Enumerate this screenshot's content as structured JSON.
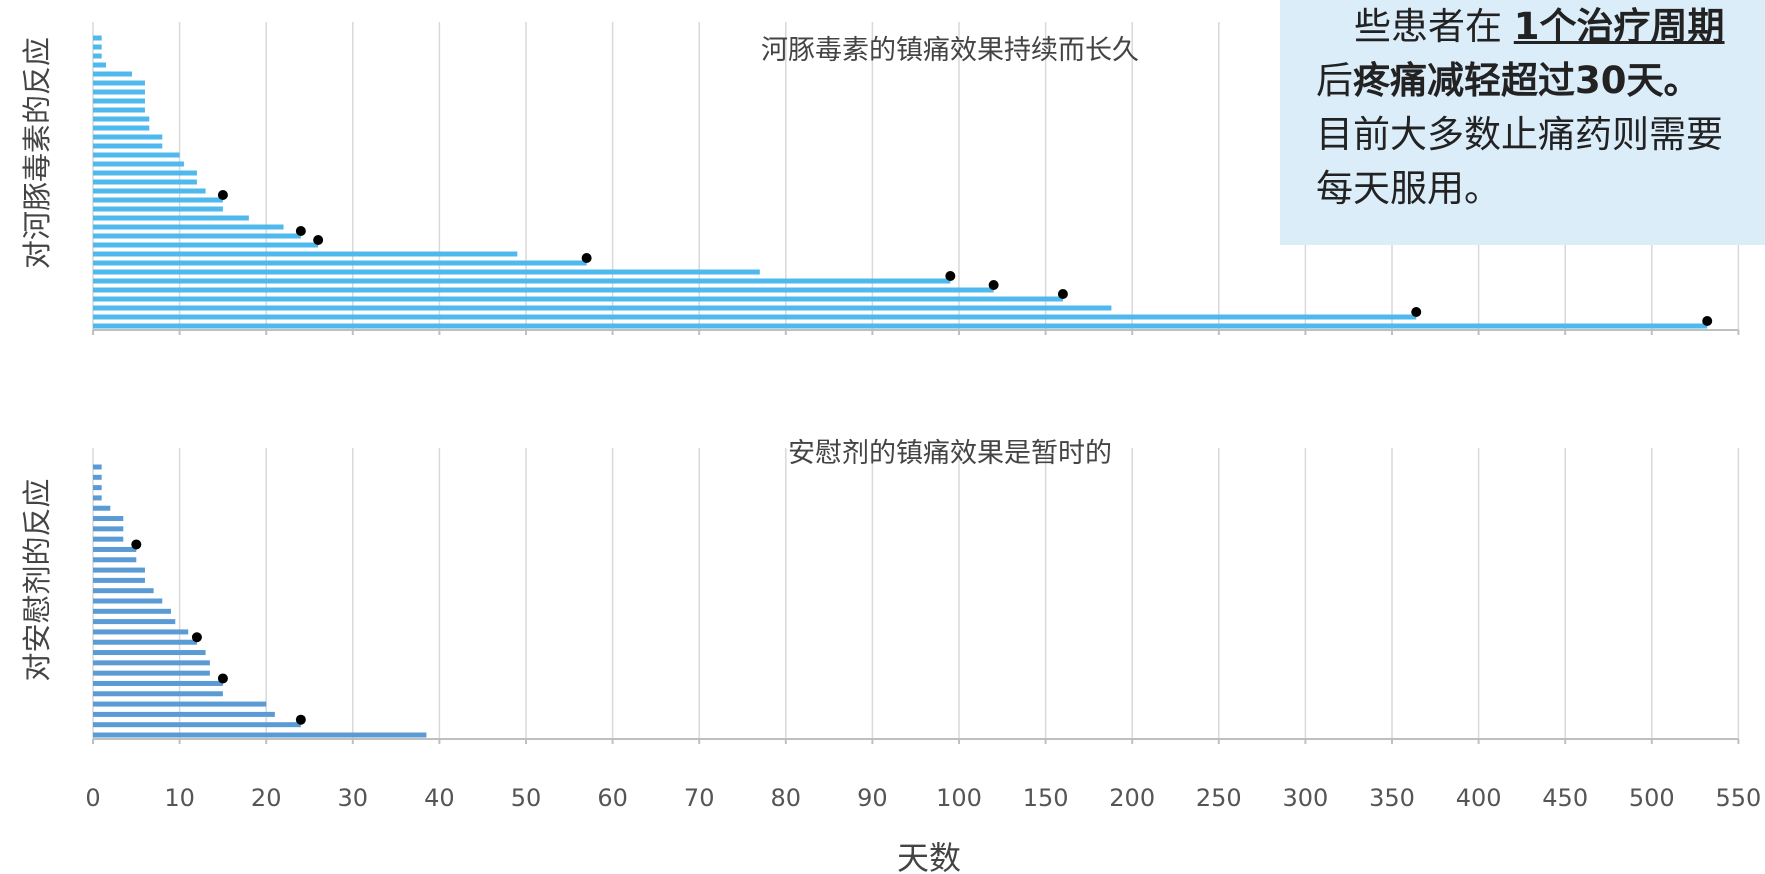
{
  "chart_data": [
    {
      "type": "bar",
      "orientation": "horizontal",
      "title": "河豚毒素的镇痛效果持续而长久",
      "ylabel": "对河豚毒素的反应",
      "xlabel": "天数",
      "color": "#4fb8ec",
      "dot_color": "#000000",
      "x_ticks": [
        0,
        10,
        20,
        30,
        40,
        50,
        60,
        70,
        80,
        90,
        100,
        150,
        200,
        250,
        300,
        350,
        400,
        450,
        500,
        550
      ],
      "values": [
        1,
        1,
        1,
        1.5,
        4.5,
        6,
        6,
        6,
        6,
        6.5,
        6.5,
        8,
        8,
        10,
        10.5,
        12,
        12,
        13,
        15,
        15,
        18,
        22,
        24,
        26,
        49,
        57,
        77,
        99,
        120,
        160,
        188,
        364,
        532
      ],
      "dot_values": [
        15,
        24,
        26,
        57,
        99,
        120,
        160,
        364,
        532
      ]
    },
    {
      "type": "bar",
      "orientation": "horizontal",
      "title": "安慰剂的镇痛效果是暂时的",
      "ylabel": "对安慰剂的反应",
      "xlabel": "天数",
      "color": "#5b9bd5",
      "dot_color": "#000000",
      "x_ticks": [
        0,
        10,
        20,
        30,
        40,
        50,
        60,
        70,
        80,
        90,
        100,
        150,
        200,
        250,
        300,
        350,
        400,
        450,
        500,
        550
      ],
      "values": [
        1,
        1,
        1,
        1,
        2,
        3.5,
        3.5,
        3.5,
        5,
        5,
        6,
        6,
        7,
        8,
        9,
        9.5,
        11,
        12,
        13,
        13.5,
        13.5,
        15,
        15,
        20,
        21,
        24,
        38.5
      ],
      "dot_values": [
        5,
        12,
        15,
        24
      ]
    }
  ],
  "callout": {
    "line1_prefix": "些患者在",
    "line1_underlined": "1个治疗周期",
    "line2_prefix": "后",
    "line2_bold": "疼痛减轻超过30天。",
    "line3": "目前大多数止痛药则需要",
    "line4": "每天服用。",
    "background": "#dcedfa"
  }
}
